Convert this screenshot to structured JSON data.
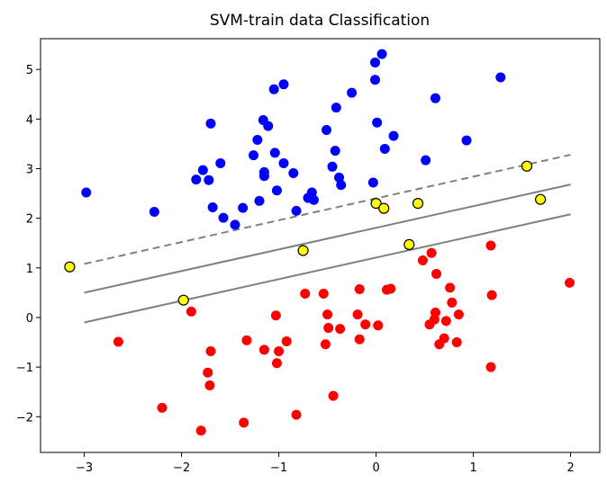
{
  "chart_data": {
    "type": "scatter",
    "title": "SVM-train data Classification",
    "xlabel": "",
    "ylabel": "",
    "xlim": [
      -3.45,
      2.3
    ],
    "ylim": [
      -2.72,
      5.62
    ],
    "x_ticks": [
      -3,
      -2,
      -1,
      0,
      1,
      2
    ],
    "y_ticks": [
      -2,
      -1,
      0,
      1,
      2,
      3,
      4,
      5
    ],
    "grid": false,
    "colors": {
      "class_a": "#0000ff",
      "class_b": "#ff0000",
      "support_vectors": "#ffff00",
      "lines": "#808080"
    },
    "series": [
      {
        "class": "a",
        "points": [
          [
            -2.98,
            2.52
          ],
          [
            -2.28,
            2.13
          ],
          [
            -1.85,
            2.78
          ],
          [
            -1.78,
            2.97
          ],
          [
            -1.72,
            2.77
          ],
          [
            -1.7,
            3.91
          ],
          [
            -1.68,
            2.22
          ],
          [
            -1.6,
            3.11
          ],
          [
            -1.57,
            2.01
          ],
          [
            -1.45,
            1.87
          ],
          [
            -1.37,
            2.21
          ],
          [
            -1.26,
            3.27
          ],
          [
            -1.22,
            3.58
          ],
          [
            -1.2,
            2.35
          ],
          [
            -1.16,
            3.98
          ],
          [
            -1.15,
            2.85
          ],
          [
            -1.15,
            2.93
          ],
          [
            -1.11,
            3.86
          ],
          [
            -1.05,
            4.6
          ],
          [
            -1.04,
            3.32
          ],
          [
            -1.02,
            2.56
          ],
          [
            -0.95,
            4.7
          ],
          [
            -0.95,
            3.11
          ],
          [
            -0.85,
            2.91
          ],
          [
            -0.82,
            2.15
          ],
          [
            -0.7,
            2.41
          ],
          [
            -0.66,
            2.52
          ],
          [
            -0.64,
            2.37
          ],
          [
            -0.51,
            3.78
          ],
          [
            -0.45,
            3.04
          ],
          [
            -0.42,
            3.36
          ],
          [
            -0.41,
            4.23
          ],
          [
            -0.38,
            2.82
          ],
          [
            -0.36,
            2.67
          ],
          [
            -0.25,
            4.53
          ],
          [
            -0.03,
            2.72
          ],
          [
            -0.01,
            4.79
          ],
          [
            -0.01,
            5.14
          ],
          [
            0.01,
            3.93
          ],
          [
            0.06,
            5.31
          ],
          [
            0.09,
            3.4
          ],
          [
            0.18,
            3.66
          ],
          [
            0.51,
            3.17
          ],
          [
            0.61,
            4.42
          ],
          [
            0.93,
            3.57
          ],
          [
            1.28,
            4.84
          ]
        ]
      },
      {
        "class": "b",
        "points": [
          [
            -2.65,
            -0.49
          ],
          [
            -2.2,
            -1.82
          ],
          [
            -1.9,
            0.12
          ],
          [
            -1.8,
            -2.28
          ],
          [
            -1.73,
            -1.11
          ],
          [
            -1.71,
            -1.37
          ],
          [
            -1.7,
            -0.68
          ],
          [
            -1.33,
            -0.46
          ],
          [
            -1.36,
            -2.12
          ],
          [
            -1.15,
            -0.65
          ],
          [
            -1.02,
            -0.92
          ],
          [
            -1.0,
            -0.68
          ],
          [
            -1.03,
            0.04
          ],
          [
            -0.92,
            -0.48
          ],
          [
            -0.82,
            -1.96
          ],
          [
            -0.73,
            0.48
          ],
          [
            -0.54,
            0.48
          ],
          [
            -0.52,
            -0.54
          ],
          [
            -0.49,
            -0.21
          ],
          [
            -0.5,
            0.06
          ],
          [
            -0.44,
            -1.58
          ],
          [
            -0.37,
            -0.23
          ],
          [
            -0.17,
            0.57
          ],
          [
            -0.19,
            0.06
          ],
          [
            -0.17,
            -0.44
          ],
          [
            -0.11,
            -0.14
          ],
          [
            0.02,
            -0.16
          ],
          [
            0.11,
            0.56
          ],
          [
            0.15,
            0.58
          ],
          [
            0.48,
            1.15
          ],
          [
            0.55,
            -0.14
          ],
          [
            0.57,
            1.3
          ],
          [
            0.6,
            -0.04
          ],
          [
            0.61,
            0.1
          ],
          [
            0.62,
            0.88
          ],
          [
            0.65,
            -0.54
          ],
          [
            0.7,
            -0.42
          ],
          [
            0.72,
            -0.07
          ],
          [
            0.76,
            0.6
          ],
          [
            0.78,
            0.3
          ],
          [
            0.83,
            -0.5
          ],
          [
            0.85,
            0.06
          ],
          [
            1.18,
            1.45
          ],
          [
            1.18,
            -1.0
          ],
          [
            1.19,
            0.45
          ],
          [
            1.99,
            0.7
          ]
        ]
      },
      {
        "class": "support_vectors",
        "points": [
          [
            -3.15,
            1.02
          ],
          [
            -1.98,
            0.35
          ],
          [
            -0.75,
            1.35
          ],
          [
            0.0,
            2.3
          ],
          [
            0.08,
            2.2
          ],
          [
            0.34,
            1.47
          ],
          [
            0.43,
            2.3
          ],
          [
            1.55,
            3.05
          ],
          [
            1.69,
            2.38
          ]
        ]
      }
    ],
    "lines": [
      {
        "style": "dashed",
        "x": [
          -3.0,
          2.0
        ],
        "y": [
          1.08,
          3.28
        ]
      },
      {
        "style": "solid",
        "x": [
          -3.0,
          2.0
        ],
        "y": [
          0.5,
          2.68
        ]
      },
      {
        "style": "solid",
        "x": [
          -3.0,
          2.0
        ],
        "y": [
          -0.1,
          2.08
        ]
      }
    ]
  }
}
